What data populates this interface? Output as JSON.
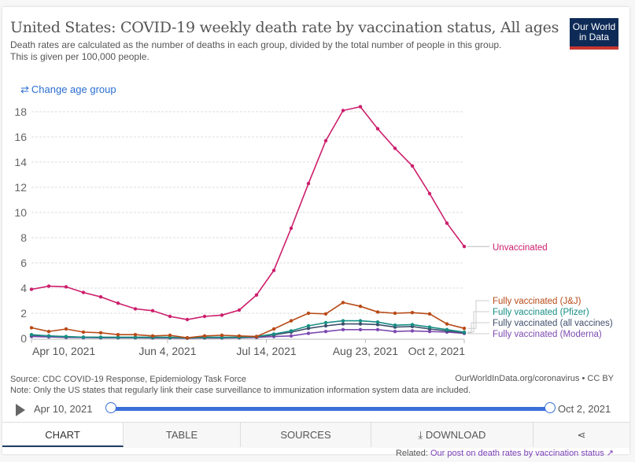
{
  "header": {
    "title": "United States: COVID-19 weekly death rate by vaccination status, All ages",
    "subtitle_line1": "Death rates are calculated as the number of deaths in each group, divided by the total number of people in this group.",
    "subtitle_line2": "This is given per 100,000 people.",
    "logo_line1": "Our World",
    "logo_line2": "in Data",
    "change_age_label": "Change age group",
    "change_age_icon": "swap-arrows-icon"
  },
  "footer": {
    "source": "Source: CDC COVID-19 Response, Epidemiology Task Force",
    "note": "Note: Only the US states that regularly link their case surveillance to immunization information system data are included.",
    "owid_link": "OurWorldInData.org/coronavirus • CC BY",
    "related_prefix": "Related: ",
    "related_link": "Our post on death rates by vaccination status"
  },
  "timeline": {
    "start": "Apr 10, 2021",
    "end": "Oct 2, 2021",
    "start_fraction": 0,
    "end_fraction": 1
  },
  "tabs": [
    {
      "label": "CHART",
      "active": true
    },
    {
      "label": "TABLE",
      "active": false
    },
    {
      "label": "SOURCES",
      "active": false
    },
    {
      "label": "DOWNLOAD",
      "active": false
    },
    {
      "label": "",
      "active": false
    }
  ],
  "chart_data": {
    "type": "line",
    "title": "United States: COVID-19 weekly death rate by vaccination status, All ages",
    "xlabel": "",
    "ylabel": "",
    "ylim": [
      0,
      19
    ],
    "yticks": [
      0,
      2,
      4,
      6,
      8,
      10,
      12,
      14,
      16,
      18
    ],
    "grid": true,
    "legend": "right (inline labels)",
    "x_tick_labels": [
      "Apr 10, 2021",
      "Jun 4, 2021",
      "Jul 14, 2021",
      "Aug 23, 2021",
      "Oct 2, 2021"
    ],
    "x_tick_index": [
      0,
      7.86,
      13.57,
      19.29,
      25
    ],
    "x": [
      "2021-04-10",
      "2021-04-17",
      "2021-04-24",
      "2021-05-01",
      "2021-05-08",
      "2021-05-15",
      "2021-05-22",
      "2021-05-29",
      "2021-06-05",
      "2021-06-12",
      "2021-06-19",
      "2021-06-26",
      "2021-07-03",
      "2021-07-10",
      "2021-07-17",
      "2021-07-24",
      "2021-07-31",
      "2021-08-07",
      "2021-08-14",
      "2021-08-21",
      "2021-08-28",
      "2021-09-04",
      "2021-09-11",
      "2021-09-18",
      "2021-09-25",
      "2021-10-02"
    ],
    "series": [
      {
        "name": "Unvaccinated",
        "color": "#cc1e6c",
        "values": [
          3.9,
          4.15,
          4.1,
          3.65,
          3.3,
          2.8,
          2.35,
          2.2,
          1.75,
          1.5,
          1.75,
          1.85,
          2.25,
          3.45,
          5.4,
          8.75,
          12.3,
          15.7,
          18.1,
          18.4,
          16.65,
          15.1,
          13.7,
          11.5,
          9.15,
          7.3
        ]
      },
      {
        "name": "Fully vaccinated (J&J)",
        "color": "#b84a17",
        "values": [
          0.85,
          0.55,
          0.75,
          0.5,
          0.45,
          0.3,
          0.3,
          0.2,
          0.25,
          0.05,
          0.2,
          0.25,
          0.2,
          0.15,
          0.75,
          1.4,
          2.0,
          1.95,
          2.85,
          2.55,
          2.1,
          2.0,
          2.05,
          1.95,
          1.15,
          0.8
        ]
      },
      {
        "name": "Fully vaccinated (Pfizer)",
        "color": "#178f85",
        "values": [
          0.3,
          0.2,
          0.15,
          0.1,
          0.1,
          0.1,
          0.1,
          0.1,
          0.1,
          0.05,
          0.1,
          0.1,
          0.1,
          0.15,
          0.35,
          0.6,
          1.0,
          1.25,
          1.4,
          1.4,
          1.3,
          1.05,
          1.1,
          0.9,
          0.7,
          0.5
        ]
      },
      {
        "name": "Fully vaccinated (all vaccines)",
        "color": "#3e4e6b",
        "values": [
          0.25,
          0.2,
          0.12,
          0.1,
          0.08,
          0.07,
          0.07,
          0.06,
          0.06,
          0.03,
          0.06,
          0.06,
          0.07,
          0.12,
          0.28,
          0.5,
          0.8,
          1.0,
          1.15,
          1.15,
          1.1,
          0.9,
          0.95,
          0.75,
          0.6,
          0.45
        ]
      },
      {
        "name": "Fully vaccinated (Moderna)",
        "color": "#7d4ab0",
        "values": [
          0.15,
          0.12,
          0.08,
          0.06,
          0.05,
          0.05,
          0.05,
          0.04,
          0.04,
          0.02,
          0.04,
          0.04,
          0.05,
          0.08,
          0.15,
          0.2,
          0.4,
          0.55,
          0.7,
          0.7,
          0.7,
          0.55,
          0.6,
          0.55,
          0.5,
          0.4
        ]
      }
    ]
  }
}
